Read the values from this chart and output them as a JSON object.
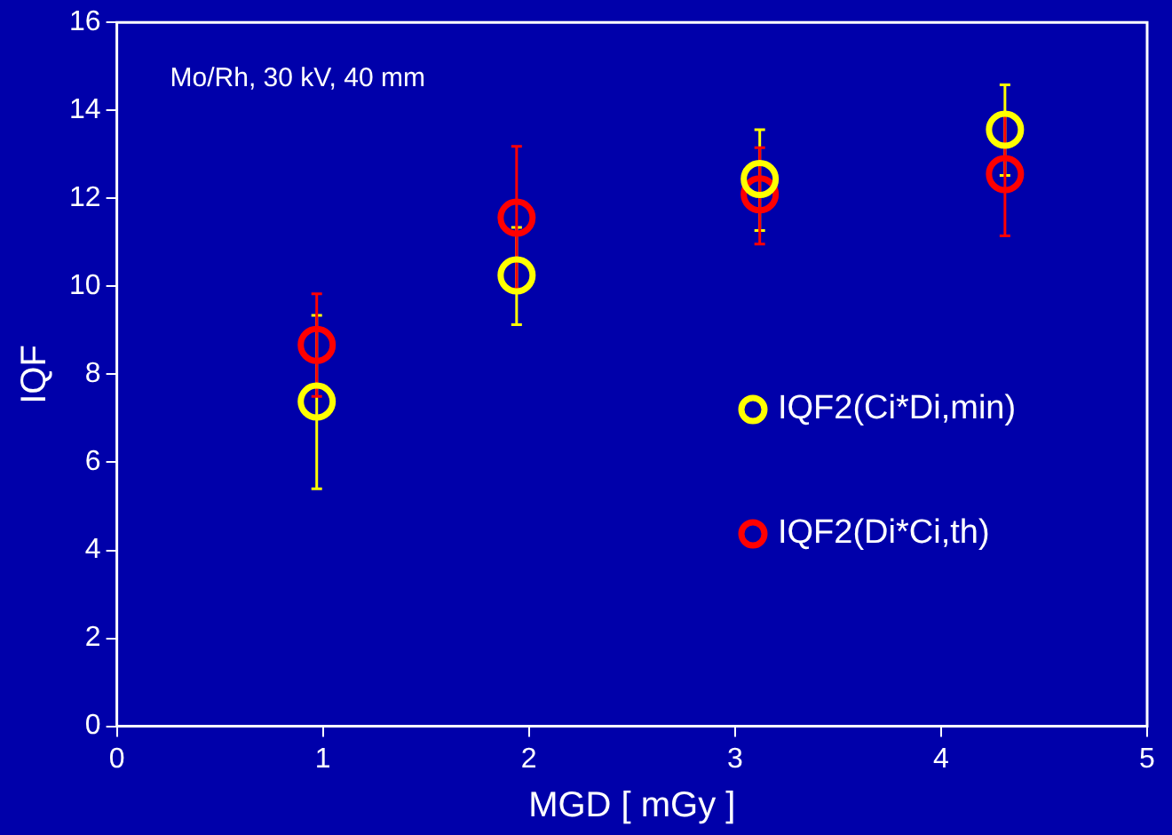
{
  "chart_data": {
    "type": "scatter",
    "xlabel": "MGD [ mGy ]",
    "ylabel": "IQF",
    "annotations": [
      "Mo/Rh, 30 kV, 40 mm"
    ],
    "xlim": [
      0,
      5
    ],
    "xticks": [
      0,
      1,
      2,
      3,
      4,
      5
    ],
    "ylim": [
      0,
      16
    ],
    "yticks": [
      0,
      2,
      4,
      6,
      8,
      10,
      12,
      14,
      16
    ],
    "grid": false,
    "legend": "right",
    "marker": "circle",
    "series": [
      {
        "name": "IQF2(Ci*Di,min)",
        "color": "#ffff00",
        "x": [
          0.97,
          1.94,
          3.12,
          4.31
        ],
        "values": [
          7.38,
          10.25,
          12.44,
          13.56
        ],
        "errors": [
          [
            5.4,
            9.34
          ],
          [
            9.13,
            11.34
          ],
          [
            11.27,
            13.56
          ],
          [
            12.52,
            14.58
          ]
        ]
      },
      {
        "name": "IQF2(Di*Ci,th)",
        "color": "#ff0000",
        "x": [
          0.97,
          1.94,
          3.12,
          4.31
        ],
        "values": [
          8.67,
          11.56,
          12.09,
          12.55
        ],
        "errors": [
          [
            7.5,
            9.83
          ],
          [
            9.94,
            13.18
          ],
          [
            10.96,
            13.15
          ],
          [
            11.15,
            13.95
          ]
        ]
      }
    ]
  }
}
